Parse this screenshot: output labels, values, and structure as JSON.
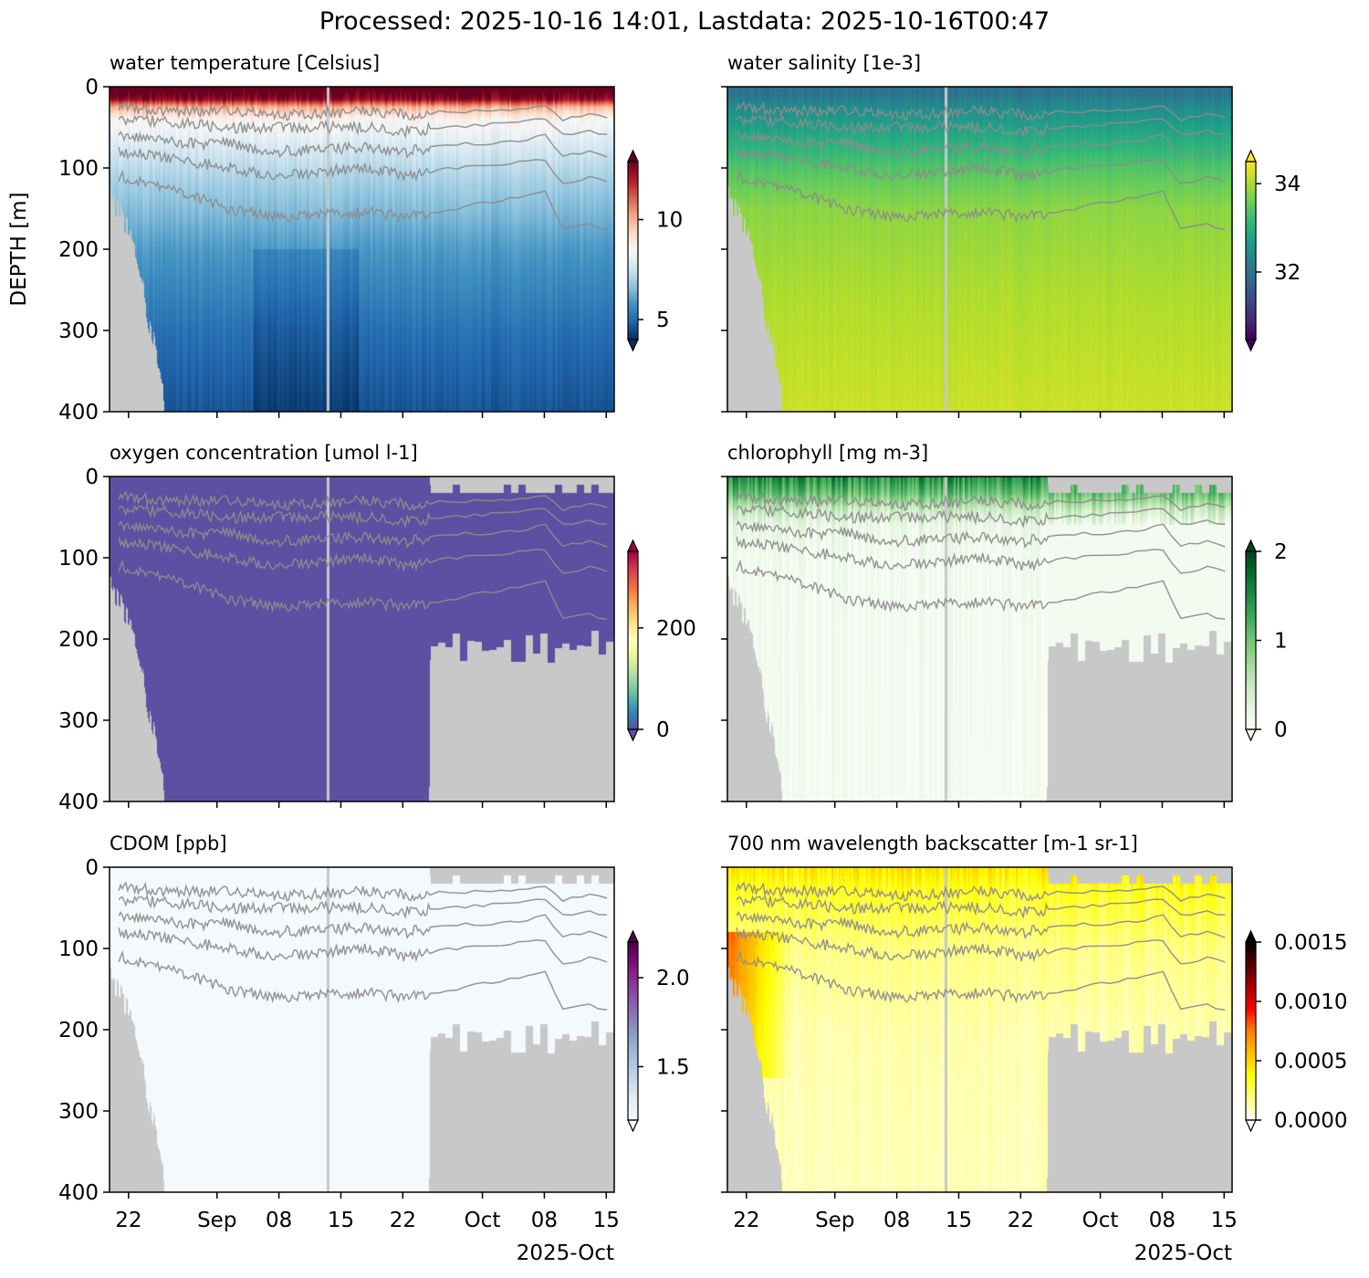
{
  "chart_data": {
    "type": "heatmap",
    "title": "Processed: 2025-10-16 14:01, Lastdata: 2025-10-16T00:47",
    "x_axis": {
      "units": "days since 2025-08-01",
      "xlim": [
        18.85,
        75.9
      ],
      "ticks": [
        {
          "day": 21,
          "label": "22"
        },
        {
          "day": 31,
          "label": "Sep"
        },
        {
          "day": 38,
          "label": "08"
        },
        {
          "day": 45,
          "label": "15"
        },
        {
          "day": 52,
          "label": "22"
        },
        {
          "day": 61,
          "label": "Oct"
        },
        {
          "day": 68,
          "label": "08"
        },
        {
          "day": 75,
          "label": "15"
        }
      ],
      "offset_label": "2025-Oct"
    },
    "y_axis": {
      "label": "DEPTH [m]",
      "ylim": [
        400,
        0
      ],
      "ticks": [
        "0",
        "100",
        "200",
        "300",
        "400"
      ]
    },
    "missing_color": "#c8c8c8",
    "contour_color": "#8c8c8c",
    "data_gap_days": [
      43.45,
      43.75
    ],
    "coverage": {
      "full": {
        "days": [
          18.85,
          21.9,
          23.5,
          24.8,
          25.0,
          80
        ],
        "bottom_depth": [
          130,
          200,
          300,
          360,
          400,
          400
        ],
        "top_missing_after_day": null
      },
      "partial": {
        "days": [
          18.85,
          21.9,
          23.5,
          24.8,
          25.0,
          55.0,
          55.1,
          80
        ],
        "bottom_depth": [
          130,
          200,
          300,
          360,
          400,
          400,
          210,
          210
        ],
        "top_missing_after_day": 55.05,
        "top_missing_depth": 20
      }
    },
    "contours": {
      "days": [
        19.9,
        27.1,
        32.2,
        37.3,
        47.6,
        52.7,
        57.8,
        62.9,
        68.1,
        70.1,
        73.2,
        75.9
      ],
      "depths": [
        [
          25,
          30,
          30,
          35,
          30,
          35,
          30,
          30,
          25,
          40,
          35,
          40
        ],
        [
          40,
          45,
          50,
          50,
          50,
          55,
          50,
          45,
          40,
          60,
          55,
          60
        ],
        [
          60,
          70,
          70,
          80,
          75,
          80,
          70,
          70,
          60,
          85,
          80,
          90
        ],
        [
          80,
          90,
          100,
          110,
          100,
          110,
          100,
          95,
          90,
          120,
          110,
          120
        ],
        [
          110,
          130,
          150,
          160,
          155,
          160,
          150,
          140,
          130,
          175,
          170,
          180
        ]
      ]
    },
    "panels": [
      {
        "id": "water-temperature",
        "title": "water temperature [Celsius]",
        "coverage": "full",
        "clim": [
          4.0,
          12.9
        ],
        "colorbar_ticks": [
          {
            "value": 5,
            "label": "5"
          },
          {
            "value": 10,
            "label": "10"
          }
        ],
        "colormap": [
          "#053061",
          "#2166ac",
          "#4393c3",
          "#92c5de",
          "#d1e5f0",
          "#f7f7f7",
          "#fddbc7",
          "#f4a582",
          "#d6604d",
          "#b2182b",
          "#67001f"
        ],
        "profile": {
          "depth": [
            0,
            15,
            25,
            40,
            80,
            120,
            200,
            300,
            400
          ],
          "value": [
            13.5,
            12.5,
            10,
            8.6,
            7.6,
            6.9,
            5.9,
            5.1,
            4.6
          ]
        },
        "noise": 0.4
      },
      {
        "id": "water-salinity",
        "title": "water salinity [1e-3]",
        "coverage": "full",
        "clim": [
          30.47,
          34.5
        ],
        "colorbar_ticks": [
          {
            "value": 32,
            "label": "32"
          },
          {
            "value": 34,
            "label": "34"
          }
        ],
        "colormap": [
          "#440154",
          "#482878",
          "#3e4989",
          "#31688e",
          "#26828e",
          "#1f9e89",
          "#35b779",
          "#6ece58",
          "#b5de2b",
          "#fde725"
        ],
        "profile": {
          "depth": [
            0,
            30,
            60,
            100,
            150,
            250,
            400
          ],
          "value": [
            31.9,
            32.5,
            32.9,
            33.4,
            33.8,
            34.0,
            34.2
          ]
        },
        "noise": 0.12
      },
      {
        "id": "oxygen-concentration",
        "title": "oxygen concentration [umol l-1]",
        "coverage": "partial",
        "clim": [
          0,
          351
        ],
        "colorbar_ticks": [
          {
            "value": 0,
            "label": "0"
          },
          {
            "value": 200,
            "label": "200"
          }
        ],
        "colormap": [
          "#5e4fa2",
          "#3288bd",
          "#66c2a5",
          "#abdda4",
          "#e6f598",
          "#ffffbf",
          "#fee08b",
          "#fdae61",
          "#f46d43",
          "#d53e4f",
          "#9e0142"
        ],
        "profile": {
          "depth": [
            0,
            400
          ],
          "value": [
            -10,
            -10
          ]
        },
        "noise": 0
      },
      {
        "id": "chlorophyll",
        "title": "chlorophyll [mg m-3]",
        "coverage": "partial",
        "clim": [
          0,
          2
        ],
        "colorbar_ticks": [
          {
            "value": 0,
            "label": "0"
          },
          {
            "value": 1,
            "label": "1"
          },
          {
            "value": 2,
            "label": "2"
          }
        ],
        "colormap": [
          "#f7fcf5",
          "#e5f5e0",
          "#c7e9c0",
          "#a1d99b",
          "#74c476",
          "#41ab5d",
          "#238b45",
          "#006d2c",
          "#00441b"
        ],
        "profile": {
          "depth": [
            0,
            20,
            40,
            60,
            100,
            400
          ],
          "value": [
            1.5,
            1.1,
            0.5,
            0.18,
            0.06,
            0.04
          ]
        },
        "noise": 0.25
      },
      {
        "id": "cdom",
        "title": "CDOM [ppb]",
        "coverage": "partial",
        "clim": [
          1.2,
          2.2
        ],
        "colorbar_ticks": [
          {
            "value": 1.5,
            "label": "1.5"
          },
          {
            "value": 2.0,
            "label": "2.0"
          }
        ],
        "colormap": [
          "#f7fcfd",
          "#e0ecf4",
          "#bfd3e6",
          "#9ebcda",
          "#8c96c6",
          "#8c6bb1",
          "#88419d",
          "#810f7c",
          "#4d004b"
        ],
        "profile": {
          "depth": [
            0,
            400
          ],
          "value": [
            1.22,
            1.22
          ]
        },
        "noise": 0
      },
      {
        "id": "backscatter-700nm",
        "title": "700 nm wavelength backscatter [m-1 sr-1]",
        "coverage": "partial",
        "clim": [
          0,
          0.0015
        ],
        "colorbar_ticks": [
          {
            "value": 0,
            "label": "0.0000"
          },
          {
            "value": 0.0005,
            "label": "0.0005"
          },
          {
            "value": 0.001,
            "label": "0.0010"
          },
          {
            "value": 0.0015,
            "label": "0.0015"
          }
        ],
        "colormap": [
          "#ffffff",
          "#ffff80",
          "#ffff00",
          "#ffbf00",
          "#ff8000",
          "#ff0000",
          "#aa0000",
          "#550000",
          "#000000"
        ],
        "profile": {
          "depth": [
            0,
            30,
            100,
            200,
            400
          ],
          "value": [
            0.00045,
            0.00032,
            0.00018,
            0.00012,
            0.0001
          ]
        },
        "noise": 8e-05
      }
    ]
  }
}
